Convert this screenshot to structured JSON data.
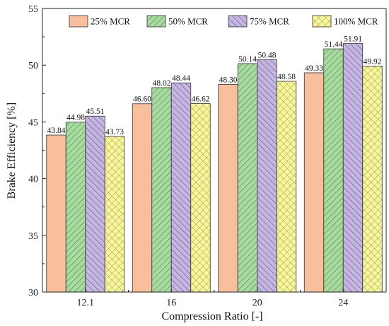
{
  "chart_data": {
    "type": "bar",
    "xlabel": "Compression Ratio [-]",
    "ylabel": "Brake Efficiency [%]",
    "categories": [
      "12.1",
      "16",
      "20",
      "24"
    ],
    "ylim": [
      30,
      55
    ],
    "yticks": [
      30,
      35,
      40,
      45,
      50,
      55
    ],
    "grid": false,
    "legend_position": "top-center",
    "series": [
      {
        "name": "25% MCR",
        "values": [
          43.84,
          46.6,
          48.3,
          49.33
        ],
        "labels": [
          "43.84",
          "46.60",
          "48.30",
          "49.33"
        ],
        "color": "#f9be9c",
        "pattern": "solid"
      },
      {
        "name": "50% MCR",
        "values": [
          44.98,
          48.02,
          50.14,
          51.44
        ],
        "labels": [
          "44.98",
          "48.02",
          "50.14",
          "51.44"
        ],
        "color": "#a9dba1",
        "pattern": "diagonal"
      },
      {
        "name": "75% MCR",
        "values": [
          45.51,
          48.44,
          50.48,
          51.91
        ],
        "labels": [
          "45.51",
          "48.44",
          "50.48",
          "51.91"
        ],
        "color": "#c4b6df",
        "pattern": "backdiagonal"
      },
      {
        "name": "100% MCR",
        "values": [
          43.73,
          46.62,
          48.58,
          49.92
        ],
        "labels": [
          "43.73",
          "46.62",
          "48.58",
          "49.92"
        ],
        "color": "#f7f59e",
        "pattern": "crosshatch"
      }
    ]
  }
}
